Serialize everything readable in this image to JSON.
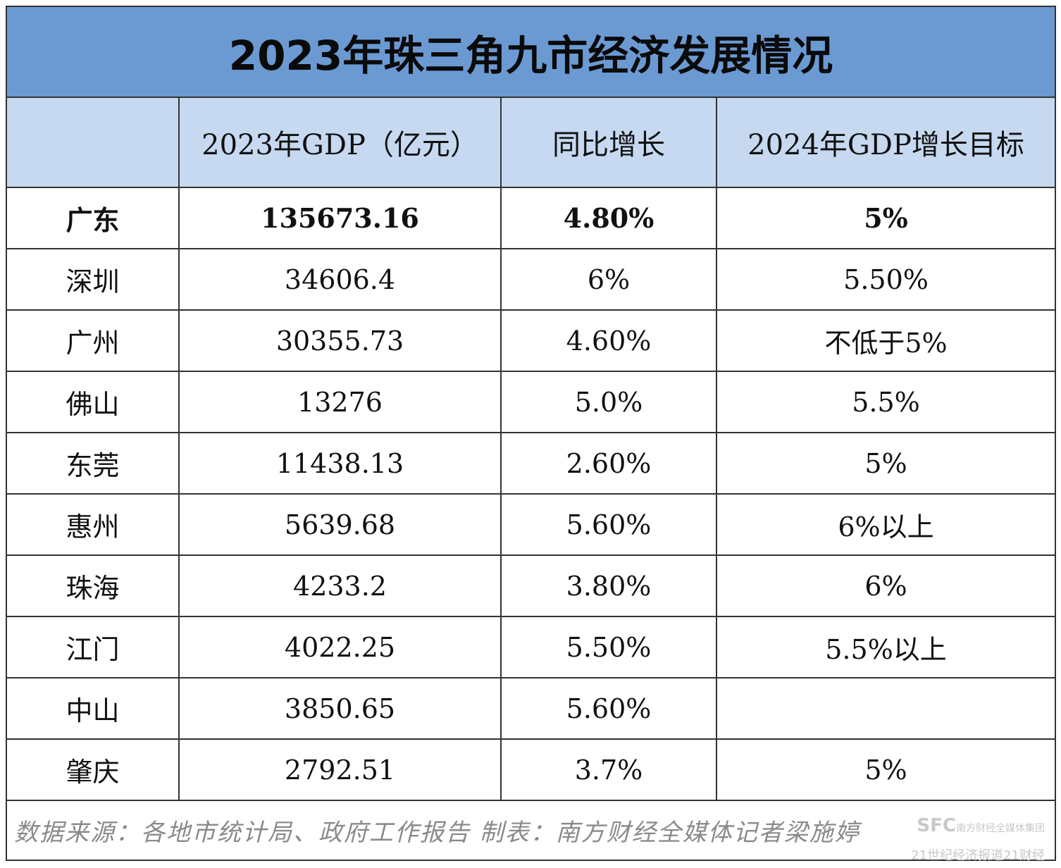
{
  "title": "2023年珠三角九市经济发展情况",
  "table": {
    "header": [
      "2023年GDP（亿元）",
      "同比增长",
      "2024年GDP增长目标"
    ],
    "rows": [
      [
        "广东",
        "135673.16",
        "4.80%",
        "5%"
      ],
      [
        "深圳",
        "34606.4",
        "6%",
        "5.50%"
      ],
      [
        "广州",
        "30355.73",
        "4.60%",
        "不低于5%"
      ],
      [
        "佛山",
        "13276",
        "5.0%",
        "5.5%"
      ],
      [
        "东莞",
        "11438.13",
        "2.60%",
        "5%"
      ],
      [
        "惠州",
        "5639.68",
        "5.60%",
        "6%以上"
      ],
      [
        "珠海",
        "4233.2",
        "3.80%",
        "6%"
      ],
      [
        "江门",
        "4022.25",
        "5.50%",
        "5.5%以上"
      ],
      [
        "中山",
        "3850.65",
        "5.60%"
      ],
      [
        "肇庆",
        "2792.51",
        "3.7%",
        "5%"
      ]
    ]
  },
  "footer": "数据来源：各地市统计局、政府工作报告  制表：南方财经全媒体记者梁施婷",
  "watermark": {
    "logo": "SFC",
    "group": "南方财经全媒体集团",
    "paper": "21世纪经济报道",
    "brand": "21财经"
  }
}
